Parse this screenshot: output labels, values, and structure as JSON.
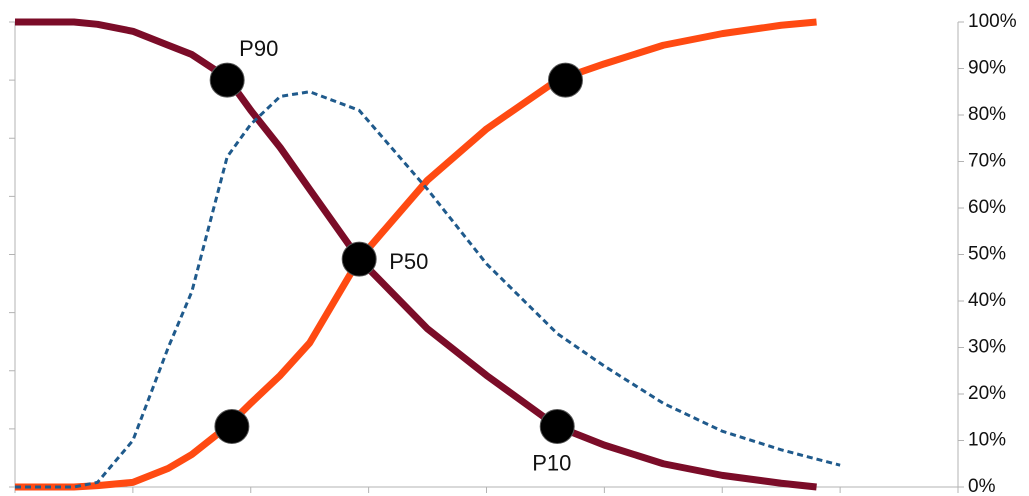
{
  "chart_data": {
    "type": "line",
    "x": [
      0,
      0.5,
      0.7,
      1,
      1.3,
      1.5,
      1.8,
      2,
      2.25,
      2.5,
      2.92,
      3.5,
      4,
      4.6,
      5,
      5.5,
      6,
      6.5,
      6.8,
      7
    ],
    "xlim": [
      0,
      8
    ],
    "xticks": [
      0,
      1,
      2,
      3,
      4,
      5,
      6,
      7,
      8
    ],
    "ylim": [
      0,
      100
    ],
    "yticks": [
      {
        "value": 0,
        "label": "0%"
      },
      {
        "value": 10,
        "label": "10%"
      },
      {
        "value": 20,
        "label": "20%"
      },
      {
        "value": 30,
        "label": "30%"
      },
      {
        "value": 40,
        "label": "40%"
      },
      {
        "value": 50,
        "label": "50%"
      },
      {
        "value": 60,
        "label": "60%"
      },
      {
        "value": 70,
        "label": "70%"
      },
      {
        "value": 80,
        "label": "80%"
      },
      {
        "value": 90,
        "label": "90%"
      },
      {
        "value": 100,
        "label": "100%"
      }
    ],
    "y2lim": [
      0,
      8
    ],
    "y2ticks": [
      0,
      1,
      2,
      3,
      4,
      5,
      6,
      7,
      8
    ],
    "series": [
      {
        "color": "#7b0c28",
        "style": "solid",
        "values": [
          100,
          100,
          99.5,
          98,
          95,
          93,
          88,
          81,
          73,
          64,
          49,
          34,
          24,
          13,
          9,
          5,
          2.5,
          0.8,
          0,
          null
        ]
      },
      {
        "color": "#ff4a12",
        "style": "solid",
        "values": [
          0,
          0,
          0.3,
          1,
          4,
          7,
          13,
          18,
          24,
          31,
          49,
          66,
          77,
          87.5,
          91,
          95,
          97.5,
          99.3,
          100,
          null
        ]
      },
      {
        "color": "#1f5a8c",
        "style": "dashed",
        "values": [
          0,
          0,
          1,
          10,
          30,
          42,
          71,
          78,
          84,
          85,
          81,
          64,
          48,
          33,
          26,
          18,
          12,
          8,
          6,
          4.7
        ]
      }
    ],
    "markers": [
      {
        "x": 1.8,
        "y": 87.5,
        "label": "P90"
      },
      {
        "x": 2.92,
        "y": 49,
        "label": "P50"
      },
      {
        "x": 4.6,
        "y": 13,
        "label": "P10"
      },
      {
        "x": 1.84,
        "y": 13
      },
      {
        "x": 4.67,
        "y": 87.5
      }
    ]
  }
}
